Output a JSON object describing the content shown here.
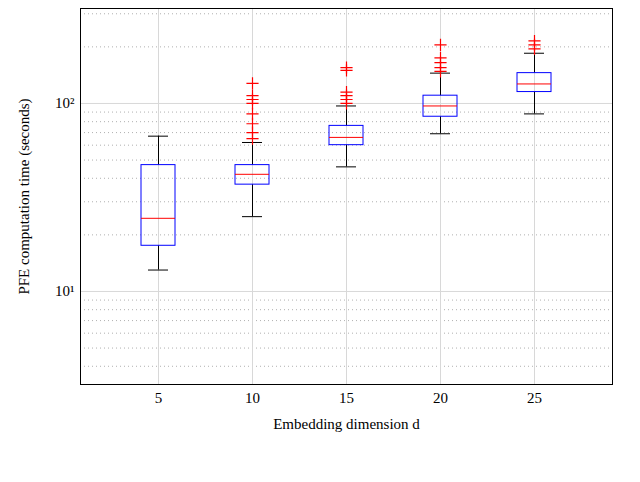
{
  "chart_data": {
    "type": "box",
    "x_label": "Embedding dimension d",
    "y_label": "PFE computation time (seconds)",
    "categories": [
      "5",
      "10",
      "15",
      "20",
      "25"
    ],
    "boxes": [
      {
        "whisker_low": 13,
        "q1": 17.5,
        "median": 24.5,
        "q3": 47,
        "whisker_high": 67,
        "outliers": []
      },
      {
        "whisker_low": 25,
        "q1": 37,
        "median": 42,
        "q3": 47,
        "whisker_high": 62,
        "outliers": [
          65,
          70,
          78,
          88,
          100,
          105,
          110,
          128
        ]
      },
      {
        "whisker_low": 46,
        "q1": 60,
        "median": 66,
        "q3": 76,
        "whisker_high": 97,
        "outliers": [
          100,
          105,
          110,
          115,
          150,
          155
        ]
      },
      {
        "whisker_low": 69,
        "q1": 85,
        "median": 97,
        "q3": 110,
        "whisker_high": 145,
        "outliers": [
          148,
          155,
          165,
          175,
          205
        ]
      },
      {
        "whisker_low": 88,
        "q1": 115,
        "median": 127,
        "q3": 145,
        "whisker_high": 185,
        "outliers": [
          195,
          205,
          215
        ]
      }
    ],
    "ylim": [
      3.2,
      320
    ],
    "yticks": [
      {
        "value": 10,
        "label": "10¹"
      },
      {
        "value": 100,
        "label": "10²"
      }
    ],
    "log": "y",
    "grid": true
  }
}
